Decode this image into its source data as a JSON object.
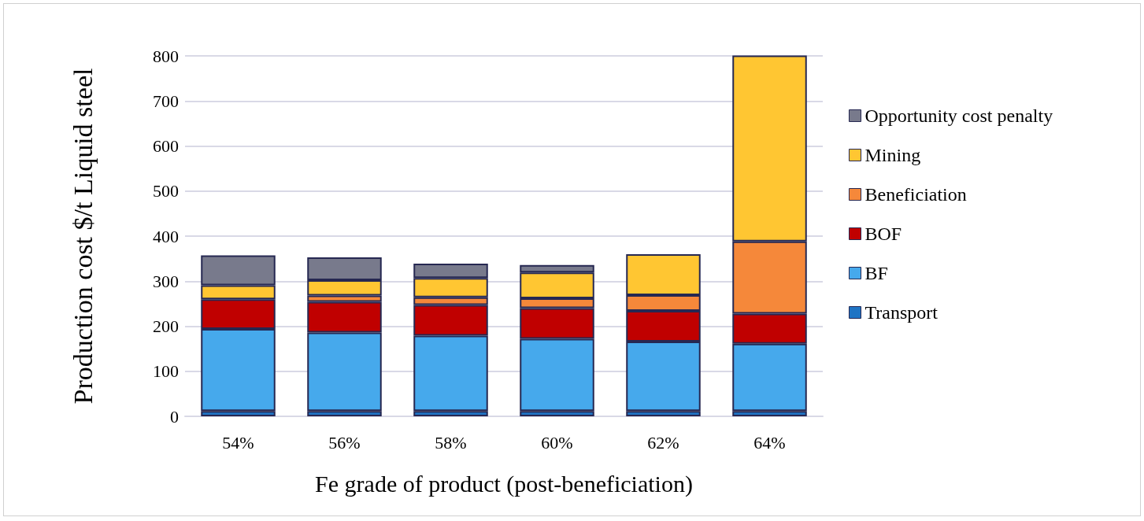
{
  "chart_data": {
    "type": "bar",
    "stacked": true,
    "xlabel": "Fe grade of product (post-beneficiation)",
    "ylabel": "Production cost $/t Liquid steel",
    "categories": [
      "54%",
      "56%",
      "58%",
      "60%",
      "62%",
      "64%"
    ],
    "series": [
      {
        "name": "Transport",
        "color": "#1f74c4",
        "values": [
          12,
          12,
          12,
          12,
          12,
          12
        ]
      },
      {
        "name": "BF",
        "color": "#46a9ec",
        "values": [
          182,
          174,
          167,
          160,
          154,
          149
        ]
      },
      {
        "name": "BOF",
        "color": "#c00000",
        "values": [
          66,
          68,
          68,
          68,
          68,
          67
        ]
      },
      {
        "name": "Beneficiation",
        "color": "#f5883a",
        "values": [
          0,
          14,
          17,
          22,
          35,
          160
        ]
      },
      {
        "name": "Mining",
        "color": "#ffc632",
        "values": [
          31,
          34,
          43,
          57,
          91,
          413
        ]
      },
      {
        "name": "Opportunity cost penalty",
        "color": "#787a8c",
        "values": [
          66,
          51,
          32,
          17,
          0,
          0
        ]
      }
    ],
    "ylim": [
      0,
      800
    ],
    "yticks": [
      0,
      100,
      200,
      300,
      400,
      500,
      600,
      700,
      800
    ],
    "grid": "y",
    "legend": "right"
  }
}
